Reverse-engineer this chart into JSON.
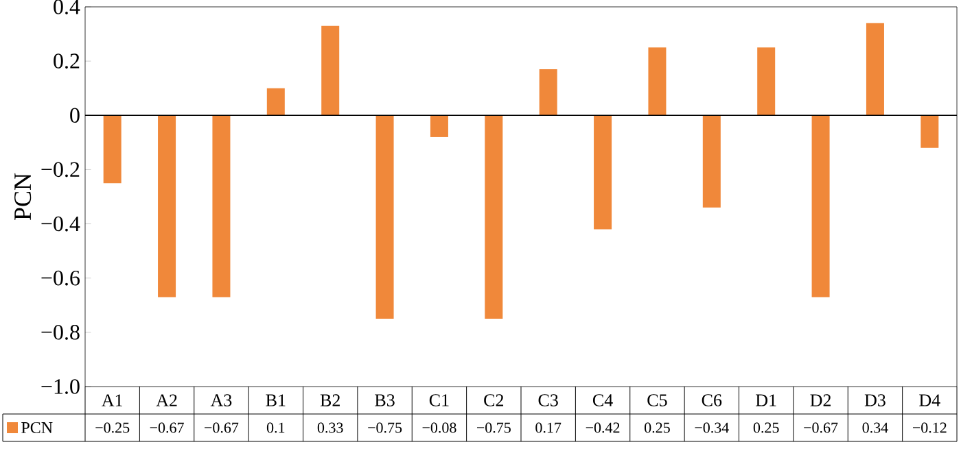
{
  "chart_data": {
    "type": "bar",
    "ylabel": "PCN",
    "categories": [
      "A1",
      "A2",
      "A3",
      "B1",
      "B2",
      "B3",
      "C1",
      "C2",
      "C3",
      "C4",
      "C5",
      "C6",
      "D1",
      "D2",
      "D3",
      "D4"
    ],
    "series": [
      {
        "name": "PCN",
        "color": "#f0883a",
        "values": [
          -0.25,
          -0.67,
          -0.67,
          0.1,
          0.33,
          -0.75,
          -0.08,
          -0.75,
          0.17,
          -0.42,
          0.25,
          -0.34,
          0.25,
          -0.67,
          0.34,
          -0.12
        ],
        "value_labels": [
          "−0.25",
          "−0.67",
          "−0.67",
          "0.1",
          "0.33",
          "−0.75",
          "−0.08",
          "−0.75",
          "0.17",
          "−0.42",
          "0.25",
          "−0.34",
          "0.25",
          "−0.67",
          "0.34",
          "−0.12"
        ]
      }
    ],
    "ylim": [
      -1.0,
      0.4
    ],
    "yticks": [
      {
        "value": -1.0,
        "label": "−1.0"
      },
      {
        "value": -0.8,
        "label": "−0.8"
      },
      {
        "value": -0.6,
        "label": "−0.6"
      },
      {
        "value": -0.4,
        "label": "−0.4"
      },
      {
        "value": -0.2,
        "label": "−0.2"
      },
      0,
      0.2,
      0.4
    ],
    "ref_lines": [
      {
        "axis": "y",
        "value": 0
      }
    ],
    "grid": false,
    "legend": "bottom"
  }
}
